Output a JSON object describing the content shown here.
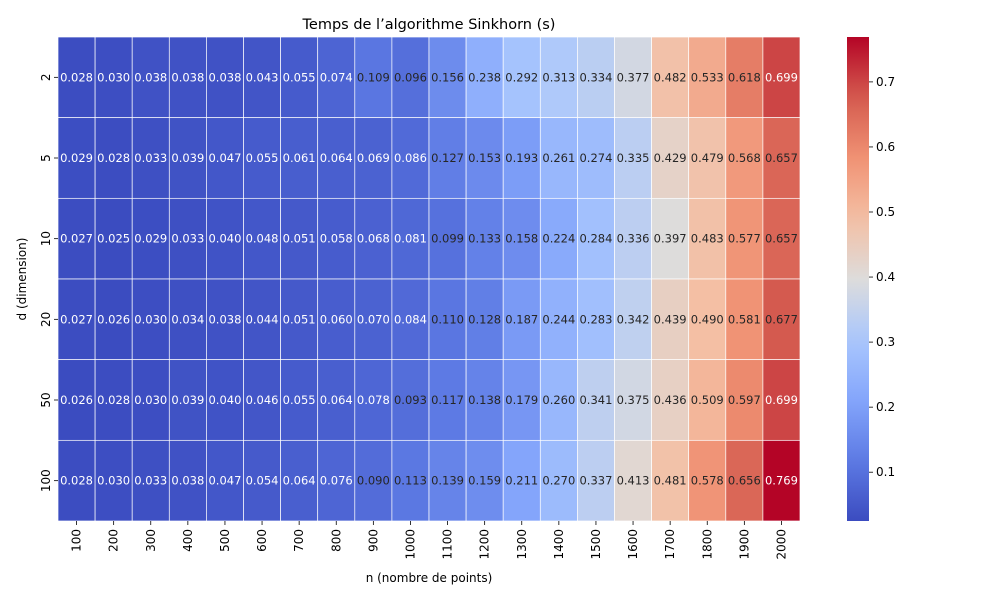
{
  "chart_data": {
    "type": "heatmap",
    "title": "Temps de l’algorithme Sinkhorn (s)",
    "xlabel": "n (nombre de points)",
    "ylabel": "d (dimension)",
    "x": [
      "100",
      "200",
      "300",
      "400",
      "500",
      "600",
      "700",
      "800",
      "900",
      "1000",
      "1100",
      "1200",
      "1300",
      "1400",
      "1500",
      "1600",
      "1700",
      "1800",
      "1900",
      "2000"
    ],
    "y": [
      "2",
      "5",
      "10",
      "20",
      "50",
      "100"
    ],
    "values": [
      [
        0.028,
        0.03,
        0.038,
        0.038,
        0.038,
        0.043,
        0.055,
        0.074,
        0.109,
        0.096,
        0.156,
        0.238,
        0.292,
        0.313,
        0.334,
        0.377,
        0.482,
        0.533,
        0.618,
        0.699
      ],
      [
        0.029,
        0.028,
        0.033,
        0.039,
        0.047,
        0.055,
        0.061,
        0.064,
        0.069,
        0.086,
        0.127,
        0.153,
        0.193,
        0.261,
        0.274,
        0.335,
        0.429,
        0.479,
        0.568,
        0.657
      ],
      [
        0.027,
        0.025,
        0.029,
        0.033,
        0.04,
        0.048,
        0.051,
        0.058,
        0.068,
        0.081,
        0.099,
        0.133,
        0.158,
        0.224,
        0.284,
        0.336,
        0.397,
        0.483,
        0.577,
        0.657
      ],
      [
        0.027,
        0.026,
        0.03,
        0.034,
        0.038,
        0.044,
        0.051,
        0.06,
        0.07,
        0.084,
        0.11,
        0.128,
        0.187,
        0.244,
        0.283,
        0.342,
        0.439,
        0.49,
        0.581,
        0.677
      ],
      [
        0.026,
        0.028,
        0.03,
        0.039,
        0.04,
        0.046,
        0.055,
        0.064,
        0.078,
        0.093,
        0.117,
        0.138,
        0.179,
        0.26,
        0.341,
        0.375,
        0.436,
        0.509,
        0.597,
        0.699
      ],
      [
        0.028,
        0.03,
        0.033,
        0.038,
        0.047,
        0.054,
        0.064,
        0.076,
        0.09,
        0.113,
        0.139,
        0.159,
        0.211,
        0.27,
        0.337,
        0.413,
        0.481,
        0.578,
        0.656,
        0.769
      ]
    ],
    "colormap": "coolwarm",
    "vmin": 0.025,
    "vmax": 0.769,
    "colorbar_ticks": [
      "0.1",
      "0.2",
      "0.3",
      "0.4",
      "0.5",
      "0.6",
      "0.7"
    ],
    "annotation_format": "3 decimals",
    "grid_color": "#ffffff"
  }
}
